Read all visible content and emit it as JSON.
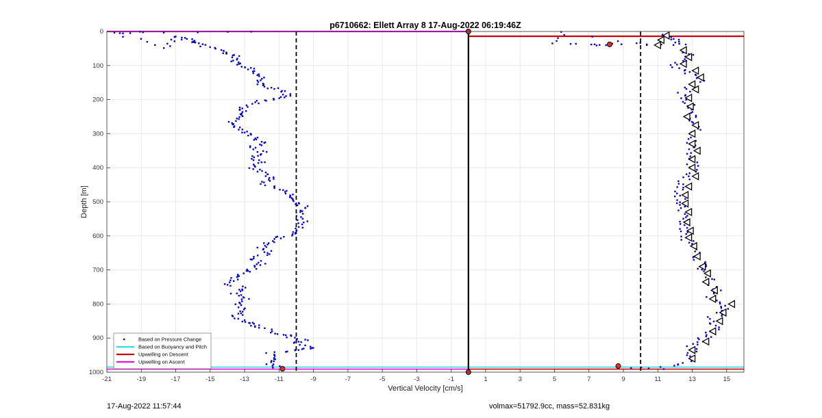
{
  "footer": {
    "timestamp": "17-Aug-2022 11:57:44",
    "mass_info": "volmax=51792.9cc, mass=52.831kg"
  },
  "chart_data": {
    "type": "scatter",
    "title": "p6710662: Ellett Array 8 17-Aug-2022 06:19:46Z",
    "xlabel": "Vertical Velocity [cm/s]",
    "ylabel": "Depth [m]",
    "xlim": [
      -21,
      16
    ],
    "ylim": [
      1000,
      0
    ],
    "y_reversed": true,
    "grid": true,
    "legend_position": "bottom-left",
    "x_ticks": [
      -21,
      -19,
      -17,
      -15,
      -13,
      -11,
      -9,
      -7,
      -5,
      -3,
      -1,
      1,
      3,
      5,
      7,
      9,
      11,
      13,
      15
    ],
    "y_ticks": [
      0,
      100,
      200,
      300,
      400,
      500,
      600,
      700,
      800,
      900,
      1000
    ],
    "colors": {
      "pressure": "#0000cc",
      "buoyancy": "#33d6e6",
      "upwell_descent": "#cc0000",
      "upwell_ascent": "#e010e0",
      "reference": "#000000"
    },
    "legend": [
      {
        "label": "Based on Pressure Change",
        "style": "dot",
        "color": "#0000cc"
      },
      {
        "label": "Based on Buoyancy and Pitch",
        "style": "line",
        "color": "#33d6e6"
      },
      {
        "label": "Upwelling on Descent",
        "style": "line",
        "color": "#cc0000"
      },
      {
        "label": "Upwelling on Ascent",
        "style": "line",
        "color": "#e010e0"
      }
    ],
    "reference_lines": {
      "vertical_solid": [
        0
      ],
      "vertical_dashed": [
        -10,
        10
      ]
    },
    "series": [
      {
        "name": "Based on Pressure Change",
        "role": "ascent",
        "points": [
          [
            -11,
            990
          ],
          [
            -11.5,
            975
          ],
          [
            -11,
            960
          ],
          [
            -11.5,
            945
          ],
          [
            -10,
            935
          ],
          [
            -9,
            930
          ],
          [
            -10,
            915
          ],
          [
            -9.5,
            905
          ],
          [
            -10.5,
            895
          ],
          [
            -11,
            885
          ],
          [
            -12,
            870
          ],
          [
            -12.5,
            860
          ],
          [
            -13,
            850
          ],
          [
            -13.5,
            835
          ],
          [
            -13,
            820
          ],
          [
            -13.5,
            800
          ],
          [
            -13,
            785
          ],
          [
            -13.5,
            770
          ],
          [
            -13,
            755
          ],
          [
            -14,
            740
          ],
          [
            -13.5,
            725
          ],
          [
            -13,
            710
          ],
          [
            -12.5,
            695
          ],
          [
            -12,
            680
          ],
          [
            -12.5,
            665
          ],
          [
            -11.5,
            650
          ],
          [
            -12,
            635
          ],
          [
            -11.5,
            620
          ],
          [
            -11,
            605
          ],
          [
            -10,
            595
          ],
          [
            -10,
            580
          ],
          [
            -9.5,
            560
          ],
          [
            -10,
            540
          ],
          [
            -9.5,
            520
          ],
          [
            -9.8,
            505
          ],
          [
            -10,
            490
          ],
          [
            -10.5,
            475
          ],
          [
            -11,
            460
          ],
          [
            -12,
            445
          ],
          [
            -11.5,
            430
          ],
          [
            -12,
            415
          ],
          [
            -12.5,
            400
          ],
          [
            -12,
            385
          ],
          [
            -12.5,
            370
          ],
          [
            -12,
            355
          ],
          [
            -12.5,
            340
          ],
          [
            -12,
            325
          ],
          [
            -12.5,
            310
          ],
          [
            -13,
            295
          ],
          [
            -13.5,
            280
          ],
          [
            -14,
            265
          ],
          [
            -13,
            250
          ],
          [
            -13,
            235
          ],
          [
            -13,
            220
          ],
          [
            -12,
            205
          ],
          [
            -11,
            195
          ],
          [
            -10.5,
            185
          ],
          [
            -11,
            170
          ],
          [
            -12,
            160
          ],
          [
            -12,
            145
          ],
          [
            -12,
            130
          ],
          [
            -12.5,
            115
          ],
          [
            -13,
            105
          ],
          [
            -13.5,
            90
          ],
          [
            -13.5,
            75
          ],
          [
            -14,
            65
          ],
          [
            -14.5,
            55
          ],
          [
            -15.5,
            40
          ],
          [
            -16,
            30
          ],
          [
            -16.5,
            20
          ],
          [
            -17,
            15
          ],
          [
            -17.5,
            50
          ],
          [
            -20.5,
            5
          ],
          [
            -19,
            2
          ],
          [
            -11,
            2
          ]
        ]
      },
      {
        "name": "Based on Pressure Change",
        "role": "descent",
        "points": [
          [
            11,
            8
          ],
          [
            11.5,
            15
          ],
          [
            12,
            25
          ],
          [
            12.5,
            40
          ],
          [
            10,
            35
          ],
          [
            8,
            38
          ],
          [
            7.5,
            40
          ],
          [
            5,
            35
          ],
          [
            5.3,
            2
          ],
          [
            12.5,
            55
          ],
          [
            13,
            70
          ],
          [
            12.5,
            85
          ],
          [
            12,
            100
          ],
          [
            12.5,
            115
          ],
          [
            13,
            130
          ],
          [
            13.5,
            145
          ],
          [
            13,
            160
          ],
          [
            12.5,
            180
          ],
          [
            12.5,
            200
          ],
          [
            13,
            220
          ],
          [
            13,
            240
          ],
          [
            13,
            260
          ],
          [
            13.5,
            280
          ],
          [
            13,
            300
          ],
          [
            13,
            320
          ],
          [
            13,
            340
          ],
          [
            13,
            360
          ],
          [
            13,
            380
          ],
          [
            13,
            400
          ],
          [
            13,
            420
          ],
          [
            12.5,
            440
          ],
          [
            12.3,
            460
          ],
          [
            12.3,
            480
          ],
          [
            12.3,
            500
          ],
          [
            12.5,
            520
          ],
          [
            12.5,
            540
          ],
          [
            12.5,
            560
          ],
          [
            12.5,
            580
          ],
          [
            12.5,
            600
          ],
          [
            12.8,
            620
          ],
          [
            13,
            640
          ],
          [
            13.2,
            660
          ],
          [
            13.5,
            680
          ],
          [
            13.5,
            700
          ],
          [
            14,
            720
          ],
          [
            14,
            740
          ],
          [
            14.5,
            760
          ],
          [
            14,
            780
          ],
          [
            14.5,
            800
          ],
          [
            15,
            815
          ],
          [
            14.5,
            830
          ],
          [
            14,
            850
          ],
          [
            14.5,
            870
          ],
          [
            14,
            890
          ],
          [
            13.5,
            905
          ],
          [
            13,
            920
          ],
          [
            13,
            940
          ],
          [
            13,
            960
          ],
          [
            12.5,
            975
          ],
          [
            11,
            990
          ],
          [
            9,
            985
          ]
        ]
      },
      {
        "name": "Based on Buoyancy and Pitch",
        "role": "descent",
        "points": [
          [
            11.5,
            12
          ],
          [
            11.2,
            25
          ],
          [
            11,
            40
          ],
          [
            12.5,
            55
          ],
          [
            12.8,
            75
          ],
          [
            12.5,
            95
          ],
          [
            13.2,
            115
          ],
          [
            13.5,
            135
          ],
          [
            13,
            155
          ],
          [
            13.2,
            170
          ],
          [
            12.8,
            195
          ],
          [
            12.9,
            220
          ],
          [
            12.7,
            250
          ],
          [
            13.2,
            275
          ],
          [
            13,
            300
          ],
          [
            13,
            330
          ],
          [
            13.3,
            350
          ],
          [
            13,
            375
          ],
          [
            13,
            400
          ],
          [
            13.2,
            425
          ],
          [
            12.8,
            455
          ],
          [
            12.6,
            480
          ],
          [
            12.6,
            505
          ],
          [
            12.8,
            530
          ],
          [
            12.7,
            560
          ],
          [
            12.9,
            585
          ],
          [
            12.8,
            605
          ],
          [
            13.1,
            630
          ],
          [
            13.3,
            660
          ],
          [
            13.6,
            690
          ],
          [
            13.9,
            710
          ],
          [
            13.8,
            735
          ],
          [
            14.3,
            760
          ],
          [
            14.2,
            785
          ],
          [
            15.3,
            800
          ],
          [
            14.8,
            825
          ],
          [
            14.6,
            850
          ],
          [
            14.2,
            880
          ],
          [
            13.8,
            910
          ],
          [
            13,
            935
          ],
          [
            13,
            960
          ]
        ]
      },
      {
        "name": "Upwelling on Descent",
        "role": "surface-and-bottom",
        "points": [
          [
            8.2,
            38
          ],
          [
            8.7,
            982
          ],
          [
            -10.8,
            990
          ],
          [
            0,
            0
          ],
          [
            0,
            1000
          ]
        ]
      }
    ]
  }
}
